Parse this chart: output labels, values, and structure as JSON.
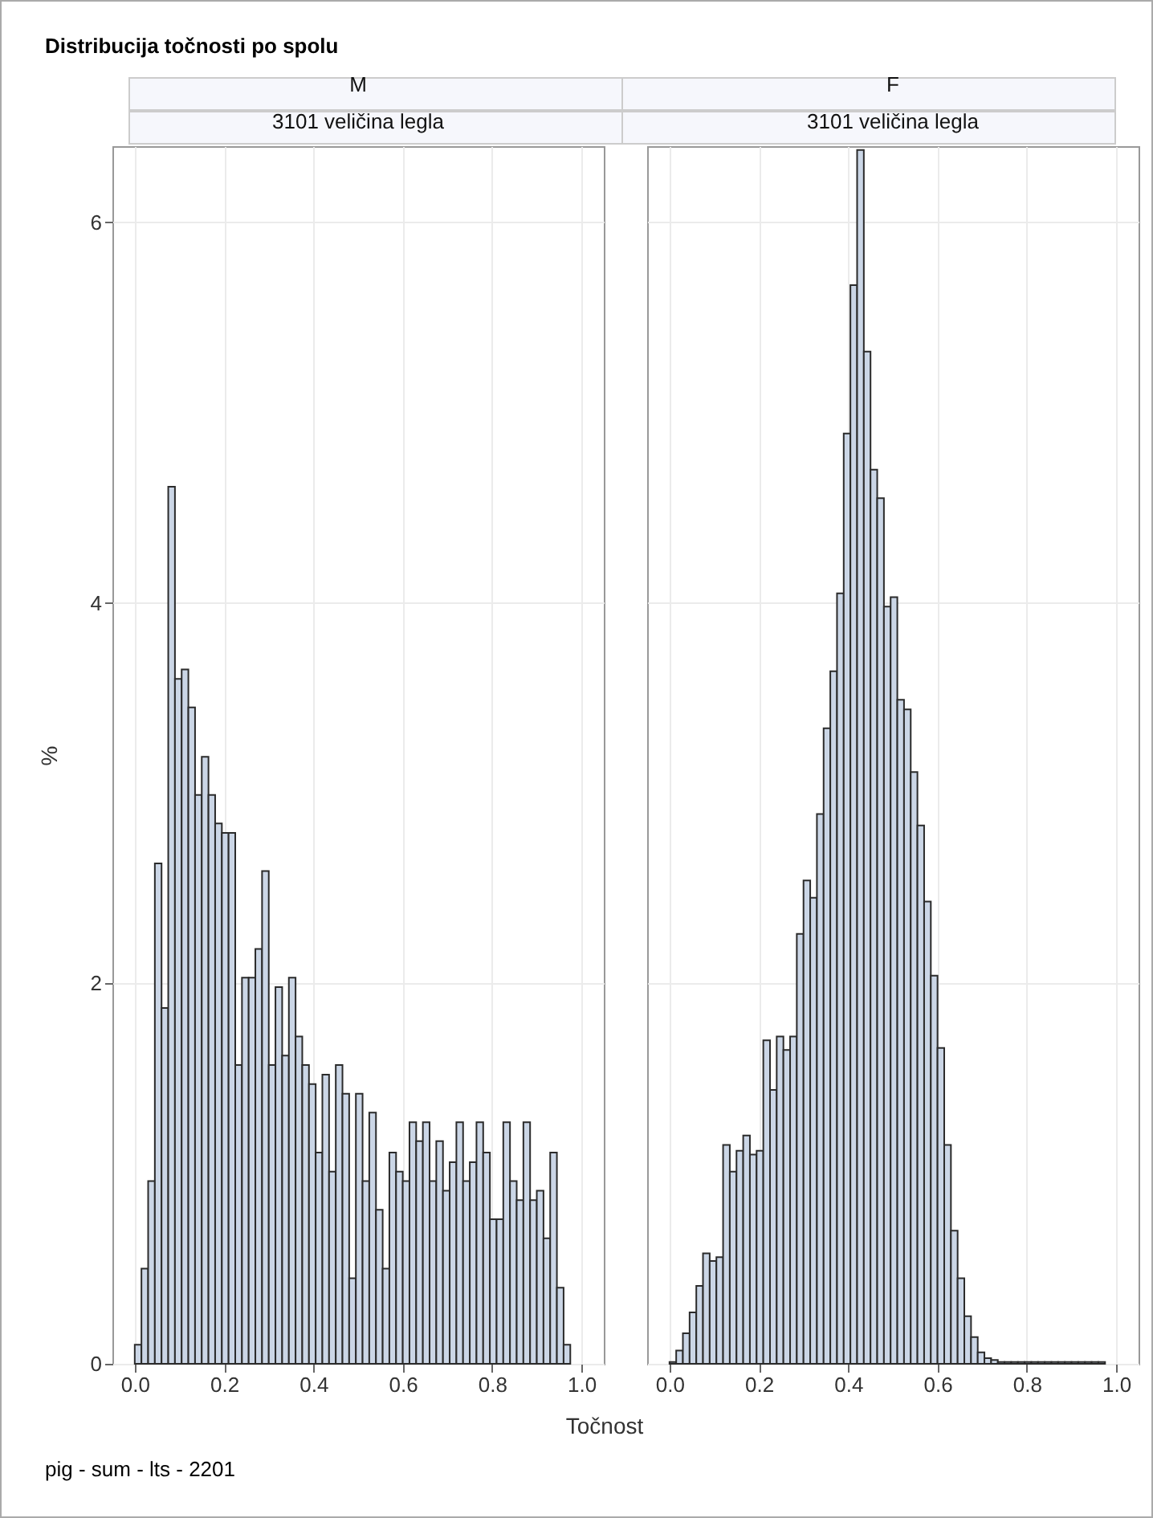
{
  "chart_data": [
    {
      "type": "histogram",
      "title": "M",
      "subtitle": "3101 veličina legla",
      "xlabel": "Točnost",
      "ylabel": "%",
      "color": "#cbd6e6",
      "grid": true,
      "annotations": [
        "Distribucija točnosti po spolu",
        "pig - sum - lts - 2201"
      ],
      "bins": [
        0,
        0.015,
        0.03,
        0.045,
        0.06,
        0.075,
        0.09,
        0.105,
        0.12,
        0.135,
        0.15,
        0.165,
        0.18,
        0.195,
        0.21,
        0.225,
        0.24,
        0.255,
        0.27,
        0.285,
        0.3,
        0.315,
        0.33,
        0.345,
        0.36,
        0.375,
        0.39,
        0.405,
        0.42,
        0.435,
        0.45,
        0.465,
        0.48,
        0.495,
        0.51,
        0.525,
        0.54,
        0.555,
        0.57,
        0.585,
        0.6,
        0.615,
        0.63,
        0.645,
        0.66,
        0.675,
        0.69,
        0.705,
        0.72,
        0.735,
        0.75,
        0.765,
        0.78,
        0.795,
        0.81,
        0.825,
        0.84,
        0.855,
        0.87,
        0.885,
        0.9,
        0.915,
        0.93,
        0.945,
        0.96,
        0.975
      ],
      "values": [
        0.1,
        0.5,
        0.96,
        2.63,
        1.87,
        4.61,
        3.6,
        3.65,
        3.45,
        2.99,
        3.19,
        2.99,
        2.84,
        2.79,
        2.79,
        1.57,
        2.03,
        2.03,
        2.18,
        2.59,
        1.57,
        1.98,
        1.62,
        2.03,
        1.72,
        1.57,
        1.47,
        1.11,
        1.52,
        1.01,
        1.57,
        1.42,
        0.45,
        1.42,
        0.96,
        1.32,
        0.81,
        0.5,
        1.11,
        1.01,
        0.96,
        1.27,
        1.17,
        1.27,
        0.96,
        1.17,
        0.91,
        1.06,
        1.27,
        0.96,
        1.06,
        1.27,
        1.11,
        0.76,
        0.76,
        1.27,
        0.96,
        0.86,
        1.27,
        0.86,
        0.91,
        0.66,
        1.11,
        0.4,
        0.1
      ],
      "xlim": [
        -0.05,
        1.05
      ],
      "xticks": [
        {
          "value": 0,
          "label": "0.0"
        },
        {
          "value": 0.2,
          "label": "0.2"
        },
        {
          "value": 0.4,
          "label": "0.4"
        },
        {
          "value": 0.6,
          "label": "0.6"
        },
        {
          "value": 0.8,
          "label": "0.8"
        },
        {
          "value": 1,
          "label": "1.0"
        }
      ],
      "ylim": [
        0,
        6.4
      ],
      "yticks": [
        0,
        2,
        4,
        6
      ]
    },
    {
      "type": "histogram",
      "title": "F",
      "subtitle": "3101 veličina legla",
      "color": "#cbd6e6",
      "grid": true,
      "tick_labels": "x",
      "bins": [
        0,
        0.015,
        0.03,
        0.045,
        0.06,
        0.075,
        0.09,
        0.105,
        0.12,
        0.135,
        0.15,
        0.165,
        0.18,
        0.195,
        0.21,
        0.225,
        0.24,
        0.255,
        0.27,
        0.285,
        0.3,
        0.315,
        0.33,
        0.345,
        0.36,
        0.375,
        0.39,
        0.405,
        0.42,
        0.435,
        0.45,
        0.465,
        0.48,
        0.495,
        0.51,
        0.525,
        0.54,
        0.555,
        0.57,
        0.585,
        0.6,
        0.615,
        0.63,
        0.645,
        0.66,
        0.675,
        0.69,
        0.705,
        0.72,
        0.735,
        0.75,
        0.765,
        0.78,
        0.795,
        0.81,
        0.825,
        0.84,
        0.855,
        0.87,
        0.885,
        0.9,
        0.915,
        0.93,
        0.945,
        0.96,
        0.975
      ],
      "values": [
        0.01,
        0.07,
        0.16,
        0.27,
        0.41,
        0.58,
        0.54,
        0.56,
        1.15,
        1.01,
        1.12,
        1.2,
        1.1,
        1.12,
        1.7,
        1.44,
        1.72,
        1.65,
        1.72,
        2.26,
        2.54,
        2.45,
        2.89,
        3.34,
        3.64,
        4.05,
        4.89,
        5.67,
        6.38,
        5.32,
        4.7,
        4.55,
        3.98,
        4.03,
        3.49,
        3.44,
        3.11,
        2.83,
        2.43,
        2.04,
        1.66,
        1.15,
        0.7,
        0.45,
        0.25,
        0.14,
        0.06,
        0.03,
        0.02,
        0.01,
        0.01,
        0.01,
        0.01,
        0.01,
        0.01,
        0.01,
        0.01,
        0.01,
        0.01,
        0.01,
        0.01,
        0.01,
        0.01,
        0.01,
        0.01
      ],
      "xlim": [
        -0.05,
        1.05
      ],
      "xticks": [
        {
          "value": 0,
          "label": "0.0"
        },
        {
          "value": 0.2,
          "label": "0.2"
        },
        {
          "value": 0.4,
          "label": "0.4"
        },
        {
          "value": 0.6,
          "label": "0.6"
        },
        {
          "value": 0.8,
          "label": "0.8"
        },
        {
          "value": 1,
          "label": "1.0"
        }
      ],
      "ylim": [
        0,
        6.4
      ],
      "yticks": [
        0,
        2,
        4,
        6
      ]
    }
  ]
}
